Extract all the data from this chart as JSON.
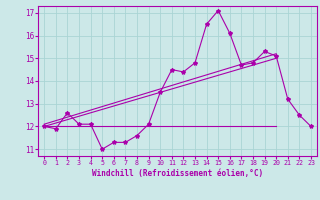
{
  "xlabel": "Windchill (Refroidissement éolien,°C)",
  "xlim": [
    -0.5,
    23.5
  ],
  "ylim": [
    10.7,
    17.3
  ],
  "yticks": [
    11,
    12,
    13,
    14,
    15,
    16,
    17
  ],
  "xticks": [
    0,
    1,
    2,
    3,
    4,
    5,
    6,
    7,
    8,
    9,
    10,
    11,
    12,
    13,
    14,
    15,
    16,
    17,
    18,
    19,
    20,
    21,
    22,
    23
  ],
  "bg_color": "#cce8e8",
  "line_color": "#aa00aa",
  "grid_color": "#aad4d4",
  "series1_x": [
    0,
    1,
    2,
    3,
    4,
    5,
    6,
    7,
    8,
    9,
    10,
    11,
    12,
    13,
    14,
    15,
    16,
    17,
    18,
    19,
    20,
    21,
    22,
    23
  ],
  "series1_y": [
    12.0,
    11.9,
    12.6,
    12.1,
    12.1,
    11.0,
    11.3,
    11.3,
    11.6,
    12.1,
    13.5,
    14.5,
    14.4,
    14.8,
    16.5,
    17.1,
    16.1,
    14.7,
    14.8,
    15.3,
    15.1,
    13.2,
    12.5,
    12.0
  ],
  "series2_x": [
    0,
    20
  ],
  "series2_y": [
    12.0,
    12.0
  ],
  "series3_x": [
    0,
    20
  ],
  "series3_y": [
    12.0,
    15.0
  ],
  "series4_x": [
    0,
    20
  ],
  "series4_y": [
    12.1,
    15.2
  ]
}
